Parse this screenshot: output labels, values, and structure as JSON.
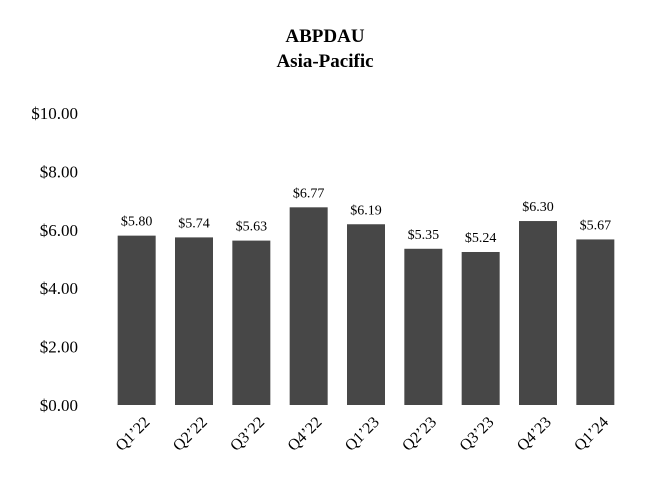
{
  "chart_data": {
    "type": "bar",
    "title": "ABPDAU",
    "subtitle": "Asia-Pacific",
    "categories": [
      "Q1’22",
      "Q2’22",
      "Q3’22",
      "Q4’22",
      "Q1’23",
      "Q2’23",
      "Q3’23",
      "Q4’23",
      "Q1’24"
    ],
    "values": [
      5.8,
      5.74,
      5.63,
      6.77,
      6.19,
      5.35,
      5.24,
      6.3,
      5.67
    ],
    "data_labels": [
      "$5.80",
      "$5.74",
      "$5.63",
      "$6.77",
      "$6.19",
      "$5.35",
      "$5.24",
      "$6.30",
      "$5.67"
    ],
    "y_ticks": [
      0,
      2,
      4,
      6,
      8,
      10
    ],
    "y_tick_labels": [
      "$0.00",
      "$2.00",
      "$4.00",
      "$6.00",
      "$8.00",
      "$10.00"
    ],
    "ylim": [
      0,
      10
    ],
    "xlabel": "",
    "ylabel": "",
    "grid": false,
    "bar_color": "#474747"
  }
}
